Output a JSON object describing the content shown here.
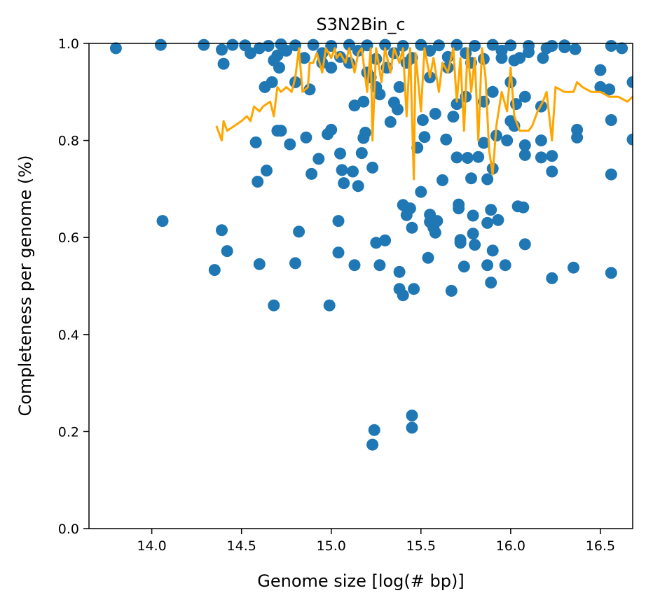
{
  "chart_data": {
    "type": "scatter",
    "title": "S3N2Bin_c",
    "xlabel": "Genome size [log(# bp)]",
    "ylabel": "Completeness per genome (%)",
    "xlim": [
      13.65,
      16.68
    ],
    "ylim": [
      0.0,
      1.0
    ],
    "xticks": [
      14.0,
      14.5,
      15.0,
      15.5,
      16.0,
      16.5
    ],
    "xtick_labels": [
      "14.0",
      "14.5",
      "15.0",
      "15.5",
      "16.0",
      "16.5"
    ],
    "yticks": [
      0.0,
      0.2,
      0.4,
      0.6,
      0.8,
      1.0
    ],
    "ytick_labels": [
      "0.0",
      "0.2",
      "0.4",
      "0.6",
      "0.8",
      "1.0"
    ],
    "grid": false,
    "colors": {
      "points": "#1f77b4",
      "line": "#ffa500"
    },
    "series": [
      {
        "type": "scatter",
        "points": [
          [
            13.8,
            0.99
          ],
          [
            14.05,
            0.997
          ],
          [
            14.29,
            0.997
          ],
          [
            14.39,
            0.987
          ],
          [
            14.4,
            0.958
          ],
          [
            14.06,
            0.634
          ],
          [
            14.35,
            0.533
          ],
          [
            14.39,
            0.615
          ],
          [
            14.42,
            0.572
          ],
          [
            14.58,
            0.796
          ],
          [
            14.59,
            0.715
          ],
          [
            14.6,
            0.545
          ],
          [
            14.64,
            0.738
          ],
          [
            14.68,
            0.46
          ],
          [
            14.7,
            0.82
          ],
          [
            14.72,
            0.82
          ],
          [
            14.77,
            0.792
          ],
          [
            14.8,
            0.547
          ],
          [
            14.82,
            0.612
          ],
          [
            14.86,
            0.806
          ],
          [
            14.89,
            0.731
          ],
          [
            14.93,
            0.762
          ],
          [
            14.98,
            0.813
          ],
          [
            14.99,
            0.46
          ],
          [
            15.0,
            0.822
          ],
          [
            15.04,
            0.634
          ],
          [
            15.04,
            0.569
          ],
          [
            15.05,
            0.773
          ],
          [
            15.06,
            0.739
          ],
          [
            15.07,
            0.712
          ],
          [
            15.12,
            0.736
          ],
          [
            15.13,
            0.543
          ],
          [
            15.15,
            0.706
          ],
          [
            15.17,
            0.774
          ],
          [
            15.18,
            0.805
          ],
          [
            15.19,
            0.816
          ],
          [
            15.23,
            0.744
          ],
          [
            15.25,
            0.589
          ],
          [
            15.27,
            0.543
          ],
          [
            15.3,
            0.594
          ],
          [
            15.33,
            0.838
          ],
          [
            15.37,
            0.864
          ],
          [
            15.38,
            0.529
          ],
          [
            15.38,
            0.494
          ],
          [
            15.4,
            0.481
          ],
          [
            15.4,
            0.667
          ],
          [
            15.42,
            0.646
          ],
          [
            15.44,
            0.66
          ],
          [
            15.45,
            0.62
          ],
          [
            15.46,
            0.494
          ],
          [
            15.5,
            0.694
          ],
          [
            15.51,
            0.842
          ],
          [
            15.52,
            0.807
          ],
          [
            15.54,
            0.558
          ],
          [
            15.55,
            0.632
          ],
          [
            15.55,
            0.647
          ],
          [
            15.57,
            0.62
          ],
          [
            15.58,
            0.61
          ],
          [
            15.59,
            0.634
          ],
          [
            15.62,
            0.718
          ],
          [
            15.64,
            0.802
          ],
          [
            15.67,
            0.49
          ],
          [
            15.68,
            0.849
          ],
          [
            15.7,
            0.765
          ],
          [
            15.71,
            0.668
          ],
          [
            15.71,
            0.66
          ],
          [
            15.72,
            0.595
          ],
          [
            15.72,
            0.589
          ],
          [
            15.74,
            0.54
          ],
          [
            15.76,
            0.764
          ],
          [
            15.78,
            0.722
          ],
          [
            15.79,
            0.645
          ],
          [
            15.79,
            0.608
          ],
          [
            15.8,
            0.585
          ],
          [
            15.82,
            0.766
          ],
          [
            15.85,
            0.795
          ],
          [
            15.87,
            0.72
          ],
          [
            15.87,
            0.63
          ],
          [
            15.87,
            0.543
          ],
          [
            15.89,
            0.507
          ],
          [
            15.89,
            0.657
          ],
          [
            15.9,
            0.573
          ],
          [
            15.9,
            0.742
          ],
          [
            15.92,
            0.81
          ],
          [
            15.93,
            0.636
          ],
          [
            15.97,
            0.543
          ],
          [
            15.98,
            0.8
          ],
          [
            16.0,
            0.84
          ],
          [
            16.02,
            0.83
          ],
          [
            16.04,
            0.664
          ],
          [
            16.07,
            0.662
          ],
          [
            16.08,
            0.586
          ],
          [
            16.08,
            0.79
          ],
          [
            16.08,
            0.77
          ],
          [
            16.17,
            0.8
          ],
          [
            16.17,
            0.765
          ],
          [
            16.23,
            0.768
          ],
          [
            16.23,
            0.736
          ],
          [
            16.23,
            0.516
          ],
          [
            16.35,
            0.538
          ],
          [
            16.37,
            0.822
          ],
          [
            16.37,
            0.806
          ],
          [
            16.56,
            0.842
          ],
          [
            16.56,
            0.73
          ],
          [
            16.56,
            0.527
          ],
          [
            16.68,
            0.802
          ],
          [
            16.68,
            0.92
          ],
          [
            16.5,
            0.945
          ],
          [
            16.5,
            0.91
          ],
          [
            16.55,
            0.905
          ],
          [
            16.56,
            0.995
          ],
          [
            16.62,
            0.99
          ],
          [
            16.18,
            0.97
          ],
          [
            16.23,
            0.995
          ],
          [
            16.3,
            0.992
          ],
          [
            16.36,
            0.988
          ],
          [
            15.24,
            0.203
          ],
          [
            15.23,
            0.173
          ],
          [
            15.45,
            0.233
          ],
          [
            15.45,
            0.208
          ],
          [
            15.13,
            0.872
          ],
          [
            15.18,
            0.88
          ],
          [
            15.22,
            0.93
          ],
          [
            15.25,
            0.91
          ],
          [
            15.27,
            0.895
          ],
          [
            15.35,
            0.878
          ],
          [
            15.38,
            0.91
          ],
          [
            15.48,
            0.785
          ],
          [
            15.58,
            0.855
          ],
          [
            15.7,
            0.875
          ],
          [
            15.75,
            0.89
          ],
          [
            15.85,
            0.88
          ],
          [
            15.9,
            0.9
          ],
          [
            16.0,
            0.92
          ],
          [
            16.03,
            0.875
          ],
          [
            16.08,
            0.89
          ],
          [
            16.02,
            0.965
          ],
          [
            16.17,
            0.87
          ],
          [
            14.63,
            0.91
          ],
          [
            14.67,
            0.92
          ],
          [
            14.7,
            0.975
          ],
          [
            14.71,
            0.95
          ],
          [
            14.8,
            0.92
          ],
          [
            14.88,
            0.905
          ],
          [
            14.95,
            0.96
          ],
          [
            15.0,
            0.95
          ],
          [
            15.1,
            0.96
          ],
          [
            15.2,
            0.94
          ],
          [
            15.31,
            0.95
          ],
          [
            15.42,
            0.96
          ],
          [
            15.55,
            0.93
          ],
          [
            15.65,
            0.95
          ],
          [
            15.78,
            0.96
          ],
          [
            15.95,
            0.97
          ],
          [
            14.45,
            0.997
          ],
          [
            14.52,
            0.996
          ],
          [
            14.6,
            0.99
          ],
          [
            14.65,
            0.995
          ],
          [
            14.72,
            0.998
          ],
          [
            14.8,
            0.996
          ],
          [
            14.9,
            0.997
          ],
          [
            15.0,
            0.995
          ],
          [
            15.1,
            0.997
          ],
          [
            15.2,
            0.996
          ],
          [
            15.3,
            0.997
          ],
          [
            15.4,
            0.995
          ],
          [
            15.5,
            0.997
          ],
          [
            15.6,
            0.996
          ],
          [
            15.7,
            0.997
          ],
          [
            15.8,
            0.995
          ],
          [
            15.9,
            0.997
          ],
          [
            16.0,
            0.996
          ],
          [
            16.1,
            0.995
          ],
          [
            16.2,
            0.99
          ],
          [
            16.3,
            0.996
          ],
          [
            14.55,
            0.98
          ],
          [
            14.75,
            0.985
          ],
          [
            14.95,
            0.98
          ],
          [
            15.15,
            0.985
          ],
          [
            15.35,
            0.98
          ],
          [
            15.55,
            0.985
          ],
          [
            15.75,
            0.98
          ],
          [
            15.95,
            0.985
          ],
          [
            16.1,
            0.982
          ],
          [
            14.68,
            0.965
          ],
          [
            14.85,
            0.97
          ],
          [
            15.05,
            0.972
          ],
          [
            15.25,
            0.968
          ],
          [
            15.45,
            0.97
          ],
          [
            15.65,
            0.972
          ],
          [
            15.85,
            0.968
          ],
          [
            16.05,
            0.97
          ]
        ]
      },
      {
        "type": "line",
        "points": [
          [
            14.36,
            0.83
          ],
          [
            14.38,
            0.81
          ],
          [
            14.39,
            0.8
          ],
          [
            14.4,
            0.84
          ],
          [
            14.42,
            0.82
          ],
          [
            14.5,
            0.84
          ],
          [
            14.53,
            0.85
          ],
          [
            14.55,
            0.84
          ],
          [
            14.57,
            0.87
          ],
          [
            14.6,
            0.86
          ],
          [
            14.62,
            0.87
          ],
          [
            14.66,
            0.88
          ],
          [
            14.68,
            0.85
          ],
          [
            14.7,
            0.91
          ],
          [
            14.72,
            0.9
          ],
          [
            14.75,
            0.91
          ],
          [
            14.78,
            0.9
          ],
          [
            14.8,
            0.93
          ],
          [
            14.82,
            0.99
          ],
          [
            14.84,
            0.9
          ],
          [
            14.87,
            0.91
          ],
          [
            14.88,
            0.96
          ],
          [
            14.9,
            0.96
          ],
          [
            14.92,
            0.98
          ],
          [
            14.95,
            0.94
          ],
          [
            14.97,
            0.99
          ],
          [
            15.0,
            0.97
          ],
          [
            15.02,
            0.99
          ],
          [
            15.03,
            0.97
          ],
          [
            15.05,
            0.98
          ],
          [
            15.08,
            0.96
          ],
          [
            15.1,
            0.99
          ],
          [
            15.13,
            0.94
          ],
          [
            15.15,
            0.98
          ],
          [
            15.17,
            0.99
          ],
          [
            15.2,
            0.9
          ],
          [
            15.22,
            0.99
          ],
          [
            15.23,
            0.8
          ],
          [
            15.25,
            0.99
          ],
          [
            15.28,
            0.92
          ],
          [
            15.3,
            0.99
          ],
          [
            15.33,
            0.94
          ],
          [
            15.35,
            0.99
          ],
          [
            15.38,
            0.96
          ],
          [
            15.4,
            0.99
          ],
          [
            15.42,
            0.85
          ],
          [
            15.44,
            0.99
          ],
          [
            15.46,
            0.72
          ],
          [
            15.47,
            0.98
          ],
          [
            15.5,
            0.86
          ],
          [
            15.52,
            0.99
          ],
          [
            15.55,
            0.93
          ],
          [
            15.57,
            0.97
          ],
          [
            15.6,
            0.9
          ],
          [
            15.62,
            0.96
          ],
          [
            15.65,
            0.94
          ],
          [
            15.68,
            0.99
          ],
          [
            15.7,
            0.88
          ],
          [
            15.72,
            0.97
          ],
          [
            15.74,
            0.82
          ],
          [
            15.76,
            0.99
          ],
          [
            15.78,
            0.9
          ],
          [
            15.8,
            0.97
          ],
          [
            15.82,
            0.8
          ],
          [
            15.84,
            0.99
          ],
          [
            15.86,
            0.93
          ],
          [
            15.88,
            0.78
          ],
          [
            15.9,
            0.73
          ],
          [
            15.92,
            0.83
          ],
          [
            15.95,
            0.9
          ],
          [
            15.98,
            0.86
          ],
          [
            16.0,
            0.95
          ],
          [
            16.02,
            0.85
          ],
          [
            16.05,
            0.82
          ],
          [
            16.08,
            0.82
          ],
          [
            16.1,
            0.82
          ],
          [
            16.12,
            0.83
          ],
          [
            16.15,
            0.86
          ],
          [
            16.18,
            0.88
          ],
          [
            16.2,
            0.9
          ],
          [
            16.23,
            0.8
          ],
          [
            16.25,
            0.91
          ],
          [
            16.3,
            0.9
          ],
          [
            16.35,
            0.9
          ],
          [
            16.37,
            0.92
          ],
          [
            16.4,
            0.91
          ],
          [
            16.45,
            0.9
          ],
          [
            16.5,
            0.9
          ],
          [
            16.55,
            0.89
          ],
          [
            16.6,
            0.89
          ],
          [
            16.65,
            0.88
          ],
          [
            16.68,
            0.89
          ]
        ]
      }
    ]
  }
}
